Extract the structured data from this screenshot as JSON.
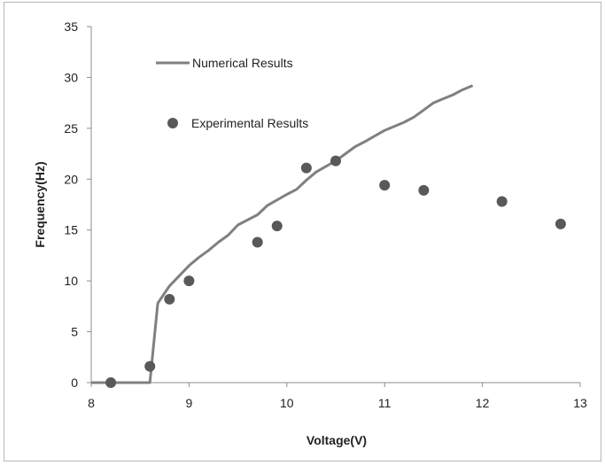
{
  "chart_data": {
    "type": "scatter",
    "title": "",
    "xlabel": "Voltage(V)",
    "ylabel": "Frequency(Hz)",
    "xlim": [
      8,
      13
    ],
    "ylim": [
      0,
      35
    ],
    "x_ticks": [
      8,
      9,
      10,
      11,
      12,
      13
    ],
    "y_ticks": [
      0,
      5,
      10,
      15,
      20,
      25,
      30,
      35
    ],
    "grid": false,
    "legend_position": "top-left",
    "series": [
      {
        "name": "Numerical Results",
        "kind": "line",
        "color": "#808080",
        "x": [
          8.0,
          8.6,
          8.68,
          8.8,
          9.0,
          9.1,
          9.2,
          9.3,
          9.4,
          9.5,
          9.7,
          9.8,
          10.0,
          10.1,
          10.2,
          10.3,
          10.5,
          10.6,
          10.7,
          10.8,
          11.0,
          11.2,
          11.3,
          11.4,
          11.5,
          11.6,
          11.7,
          11.8,
          11.9
        ],
        "y": [
          0.0,
          0.0,
          7.8,
          9.5,
          11.5,
          12.3,
          13.0,
          13.8,
          14.5,
          15.5,
          16.5,
          17.4,
          18.5,
          19.0,
          19.9,
          20.7,
          21.8,
          22.5,
          23.2,
          23.7,
          24.8,
          25.6,
          26.1,
          26.8,
          27.5,
          27.9,
          28.3,
          28.8,
          29.2
        ]
      },
      {
        "name": "Experimental Results",
        "kind": "scatter",
        "color": "#595959",
        "x": [
          8.2,
          8.6,
          8.8,
          9.0,
          9.7,
          9.9,
          10.2,
          10.5,
          11.0,
          11.4,
          12.2,
          12.8
        ],
        "y": [
          0.0,
          1.6,
          8.2,
          10.0,
          13.8,
          15.4,
          21.1,
          21.8,
          19.4,
          18.9,
          17.8,
          15.6
        ]
      }
    ]
  }
}
